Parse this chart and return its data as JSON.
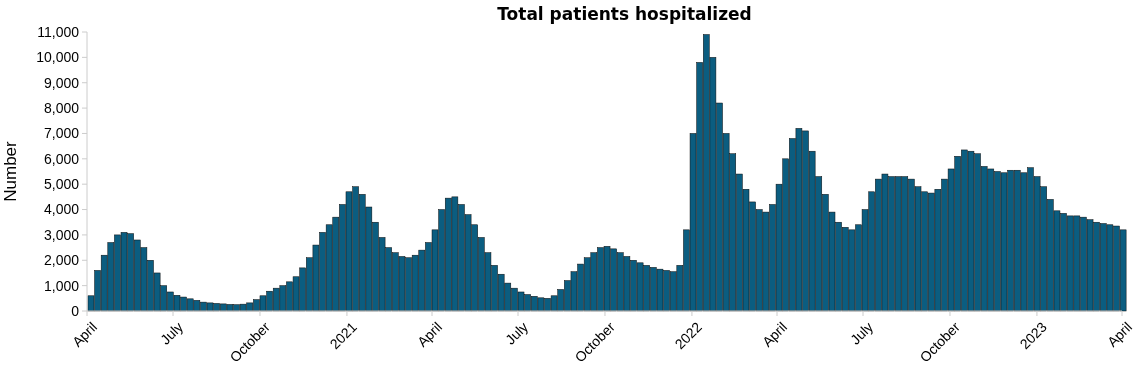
{
  "chart_data": {
    "type": "bar",
    "title": "Total patients hospitalized",
    "ylabel": "Number",
    "x": [
      "2020-04-02",
      "2020-04-09",
      "2020-04-16",
      "2020-04-23",
      "2020-04-30",
      "2020-05-07",
      "2020-05-14",
      "2020-05-21",
      "2020-05-28",
      "2020-06-04",
      "2020-06-11",
      "2020-06-18",
      "2020-06-25",
      "2020-07-02",
      "2020-07-09",
      "2020-07-16",
      "2020-07-23",
      "2020-07-30",
      "2020-08-06",
      "2020-08-13",
      "2020-08-20",
      "2020-08-27",
      "2020-09-03",
      "2020-09-10",
      "2020-09-17",
      "2020-09-24",
      "2020-10-01",
      "2020-10-08",
      "2020-10-15",
      "2020-10-22",
      "2020-10-29",
      "2020-11-05",
      "2020-11-12",
      "2020-11-19",
      "2020-11-26",
      "2020-12-03",
      "2020-12-10",
      "2020-12-17",
      "2020-12-24",
      "2020-12-31",
      "2021-01-07",
      "2021-01-14",
      "2021-01-21",
      "2021-01-28",
      "2021-02-04",
      "2021-02-11",
      "2021-02-18",
      "2021-02-25",
      "2021-03-04",
      "2021-03-11",
      "2021-03-18",
      "2021-03-25",
      "2021-04-01",
      "2021-04-08",
      "2021-04-15",
      "2021-04-22",
      "2021-04-29",
      "2021-05-06",
      "2021-05-13",
      "2021-05-20",
      "2021-05-27",
      "2021-06-03",
      "2021-06-10",
      "2021-06-17",
      "2021-06-24",
      "2021-07-01",
      "2021-07-08",
      "2021-07-15",
      "2021-07-22",
      "2021-07-29",
      "2021-08-05",
      "2021-08-12",
      "2021-08-19",
      "2021-08-26",
      "2021-09-02",
      "2021-09-09",
      "2021-09-16",
      "2021-09-23",
      "2021-09-30",
      "2021-10-07",
      "2021-10-14",
      "2021-10-21",
      "2021-10-28",
      "2021-11-04",
      "2021-11-11",
      "2021-11-18",
      "2021-11-25",
      "2021-12-02",
      "2021-12-09",
      "2021-12-16",
      "2021-12-23",
      "2021-12-30",
      "2022-01-06",
      "2022-01-13",
      "2022-01-20",
      "2022-01-27",
      "2022-02-03",
      "2022-02-10",
      "2022-02-17",
      "2022-02-24",
      "2022-03-03",
      "2022-03-10",
      "2022-03-17",
      "2022-03-24",
      "2022-03-31",
      "2022-04-07",
      "2022-04-14",
      "2022-04-21",
      "2022-04-28",
      "2022-05-05",
      "2022-05-12",
      "2022-05-19",
      "2022-05-26",
      "2022-06-02",
      "2022-06-09",
      "2022-06-16",
      "2022-06-23",
      "2022-06-30",
      "2022-07-07",
      "2022-07-14",
      "2022-07-21",
      "2022-07-28",
      "2022-08-04",
      "2022-08-11",
      "2022-08-18",
      "2022-08-25",
      "2022-09-01",
      "2022-09-08",
      "2022-09-15",
      "2022-09-22",
      "2022-09-29",
      "2022-10-06",
      "2022-10-13",
      "2022-10-20",
      "2022-10-27",
      "2022-11-03",
      "2022-11-10",
      "2022-11-17",
      "2022-11-24",
      "2022-12-01",
      "2022-12-08",
      "2022-12-15",
      "2022-12-22",
      "2022-12-29",
      "2023-01-05",
      "2023-01-12",
      "2023-01-19",
      "2023-01-26",
      "2023-02-02",
      "2023-02-09",
      "2023-02-16",
      "2023-02-23",
      "2023-03-02",
      "2023-03-09",
      "2023-03-16",
      "2023-03-23",
      "2023-03-30"
    ],
    "values": [
      600,
      1600,
      2200,
      2700,
      3000,
      3100,
      3050,
      2800,
      2500,
      2000,
      1500,
      1000,
      750,
      620,
      550,
      480,
      420,
      350,
      320,
      300,
      280,
      260,
      250,
      270,
      320,
      450,
      600,
      780,
      900,
      1000,
      1150,
      1350,
      1700,
      2100,
      2600,
      3100,
      3400,
      3700,
      4200,
      4700,
      4900,
      4600,
      4100,
      3500,
      2900,
      2500,
      2300,
      2150,
      2100,
      2200,
      2400,
      2700,
      3200,
      4000,
      4450,
      4500,
      4200,
      3800,
      3400,
      2900,
      2300,
      1800,
      1450,
      1100,
      900,
      750,
      650,
      580,
      520,
      500,
      600,
      850,
      1200,
      1550,
      1850,
      2100,
      2300,
      2500,
      2550,
      2450,
      2300,
      2150,
      2000,
      1900,
      1800,
      1720,
      1650,
      1600,
      1550,
      1800,
      3200,
      7000,
      9800,
      10900,
      10000,
      8200,
      7000,
      6200,
      5400,
      4800,
      4300,
      4000,
      3900,
      4200,
      5000,
      6000,
      6800,
      7200,
      7100,
      6300,
      5300,
      4600,
      3900,
      3500,
      3300,
      3200,
      3400,
      4000,
      4700,
      5200,
      5400,
      5300,
      5300,
      5300,
      5200,
      4900,
      4700,
      4650,
      4800,
      5200,
      5600,
      6100,
      6350,
      6300,
      6200,
      5700,
      5600,
      5500,
      5450,
      5550,
      5550,
      5450,
      5650,
      5300,
      4900,
      4400,
      3950,
      3850,
      3750,
      3750,
      3700,
      3600,
      3500,
      3450,
      3400,
      3350,
      3200
    ],
    "color": "#0b5d80",
    "xlim": [
      "2020-04-01",
      "2023-04-01"
    ],
    "xticks": [
      {
        "value": "2020-04-01",
        "label": "April"
      },
      {
        "value": "2020-07-01",
        "label": "July"
      },
      {
        "value": "2020-10-01",
        "label": "October"
      },
      {
        "value": "2021-01-01",
        "label": "2021"
      },
      {
        "value": "2021-04-01",
        "label": "April"
      },
      {
        "value": "2021-07-01",
        "label": "July"
      },
      {
        "value": "2021-10-01",
        "label": "October"
      },
      {
        "value": "2022-01-01",
        "label": "2022"
      },
      {
        "value": "2022-04-01",
        "label": "April"
      },
      {
        "value": "2022-07-01",
        "label": "July"
      },
      {
        "value": "2022-10-01",
        "label": "October"
      },
      {
        "value": "2023-01-01",
        "label": "2023"
      },
      {
        "value": "2023-04-01",
        "label": "April"
      }
    ],
    "ylim": [
      0,
      11000
    ],
    "yticks": [
      {
        "value": 0,
        "label": "0"
      },
      {
        "value": 1000,
        "label": "1,000"
      },
      {
        "value": 2000,
        "label": "2,000"
      },
      {
        "value": 3000,
        "label": "3,000"
      },
      {
        "value": 4000,
        "label": "4,000"
      },
      {
        "value": 5000,
        "label": "5,000"
      },
      {
        "value": 6000,
        "label": "6,000"
      },
      {
        "value": 7000,
        "label": "7,000"
      },
      {
        "value": 8000,
        "label": "8,000"
      },
      {
        "value": 9000,
        "label": "9,000"
      },
      {
        "value": 10000,
        "label": "10,000"
      },
      {
        "value": 11000,
        "label": "11,000"
      }
    ]
  }
}
